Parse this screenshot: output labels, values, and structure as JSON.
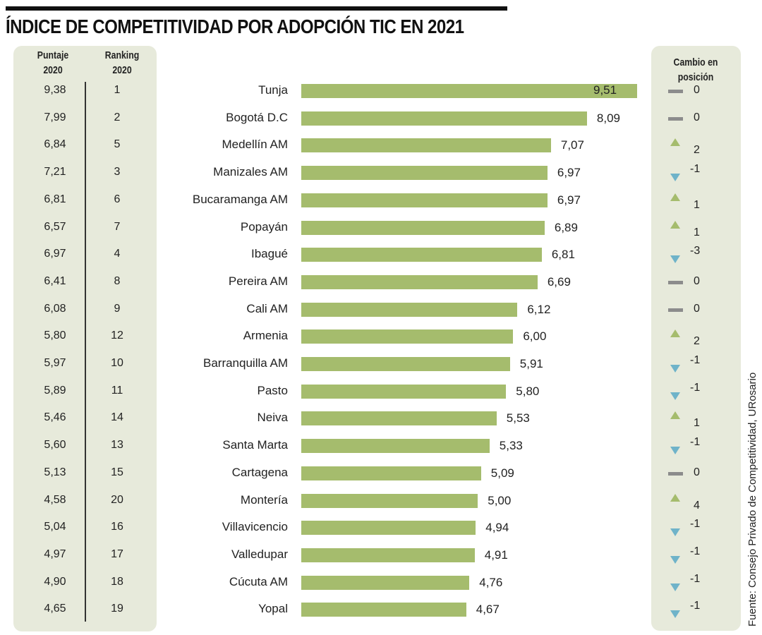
{
  "title": "ÍNDICE DE COMPETITIVIDAD POR ADOPCIÓN TIC EN 2021",
  "headers": {
    "score_2020": [
      "Puntaje",
      "2020"
    ],
    "rank_2020": [
      "Ranking",
      "2020"
    ],
    "change": [
      "Cambio en",
      "posición"
    ]
  },
  "source": "Fuente: Consejo Privado de Competitividad, URosario",
  "colors": {
    "bar": "#a5bc6d",
    "up": "#a5bc6d",
    "down": "#6fb3c9",
    "same": "#8c8c8c",
    "panel": "#e7eadb"
  },
  "chart_data": {
    "type": "bar",
    "orientation": "horizontal",
    "title": "ÍNDICE DE COMPETITIVIDAD POR ADOPCIÓN TIC EN 2021",
    "xlabel": "",
    "ylabel": "",
    "xlim": [
      0,
      9.51
    ],
    "grid": false,
    "categories": [
      "Tunja",
      "Bogotá D.C",
      "Medellín AM",
      "Manizales AM",
      "Bucaramanga AM",
      "Popayán",
      "Ibagué",
      "Pereira AM",
      "Cali AM",
      "Armenia",
      "Barranquilla AM",
      "Pasto",
      "Neiva",
      "Santa Marta",
      "Cartagena",
      "Montería",
      "Villavicencio",
      "Valledupar",
      "Cúcuta AM",
      "Yopal"
    ],
    "values": [
      9.51,
      8.09,
      7.07,
      6.97,
      6.97,
      6.89,
      6.81,
      6.69,
      6.12,
      6.0,
      5.91,
      5.8,
      5.53,
      5.33,
      5.09,
      5.0,
      4.94,
      4.91,
      4.76,
      4.67
    ],
    "value_labels": [
      "9,51",
      "8,09",
      "7,07",
      "6,97",
      "6,97",
      "6,89",
      "6,81",
      "6,69",
      "6,12",
      "6,00",
      "5,91",
      "5,80",
      "5,53",
      "5,33",
      "5,09",
      "5,00",
      "4,94",
      "4,91",
      "4,76",
      "4,67"
    ],
    "score_2020": [
      "9,38",
      "7,99",
      "6,84",
      "7,21",
      "6,81",
      "6,57",
      "6,97",
      "6,41",
      "6,08",
      "5,80",
      "5,97",
      "5,89",
      "5,46",
      "5,60",
      "5,13",
      "4,58",
      "5,04",
      "4,97",
      "4,90",
      "4,65"
    ],
    "rank_2020": [
      "1",
      "2",
      "5",
      "3",
      "6",
      "7",
      "4",
      "8",
      "9",
      "12",
      "10",
      "11",
      "14",
      "13",
      "15",
      "20",
      "16",
      "17",
      "18",
      "19"
    ],
    "position_change": [
      "0",
      "0",
      "2",
      "-1",
      "1",
      "1",
      "-3",
      "0",
      "0",
      "2",
      "-1",
      "-1",
      "1",
      "-1",
      "0",
      "4",
      "-1",
      "-1",
      "-1",
      "-1"
    ],
    "change_direction": [
      "same",
      "same",
      "up",
      "down",
      "up",
      "up",
      "down",
      "same",
      "same",
      "up",
      "down",
      "down",
      "up",
      "down",
      "same",
      "up",
      "down",
      "down",
      "down",
      "down"
    ]
  }
}
